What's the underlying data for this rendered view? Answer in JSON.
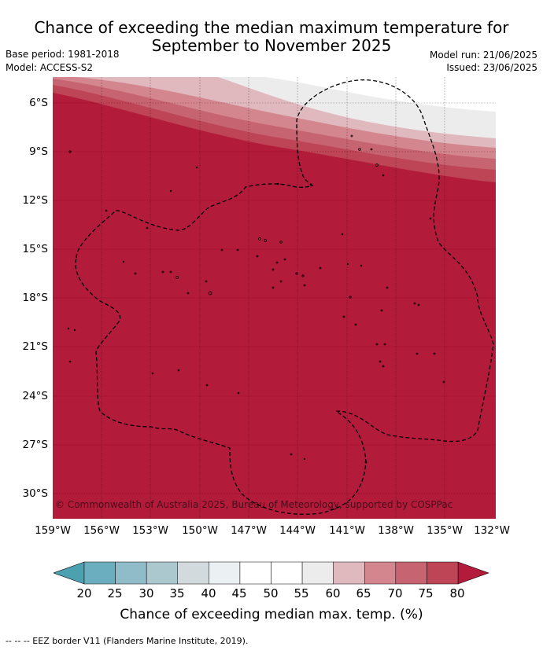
{
  "header": {
    "title_line1": "Chance of exceeding the median maximum temperature for",
    "title_line2": "September to November 2025",
    "base_period": "Base period: 1981-2018",
    "model": "Model: ACCESS-S2",
    "model_run": "Model run: 21/06/2025",
    "issued": "Issued: 23/06/2025"
  },
  "map": {
    "copyright": "© Commonwealth of Australia 2025, Bureau of Meteorology, supported by COSPPac",
    "lat_labels": [
      "6°S",
      "9°S",
      "12°S",
      "15°S",
      "18°S",
      "21°S",
      "24°S",
      "27°S",
      "30°S"
    ],
    "lon_labels": [
      "159°W",
      "156°W",
      "153°W",
      "150°W",
      "147°W",
      "144°W",
      "141°W",
      "138°W",
      "135°W",
      "132°W"
    ],
    "dominant_colour": "#b31b3b",
    "eez_border_colour": "#000000"
  },
  "colorbar": {
    "ticks": [
      "20",
      "25",
      "30",
      "35",
      "40",
      "45",
      "50",
      "55",
      "60",
      "65",
      "70",
      "75",
      "80"
    ],
    "colors": [
      "#6aaebf",
      "#8fbcc8",
      "#abc8ce",
      "#d2dadd",
      "#ebf0f2",
      "#ffffff",
      "#ffffff",
      "#ececec",
      "#e0b9bf",
      "#d4868f",
      "#c76471",
      "#bd4555"
    ],
    "low_arrow_colour": "#4ba1b0",
    "high_arrow_colour": "#b31b3b",
    "title": "Chance of exceeding median max. temp. (%)"
  },
  "footnote": "-- -- -- EEZ border V11 (Flanders Marine Institute, 2019)."
}
